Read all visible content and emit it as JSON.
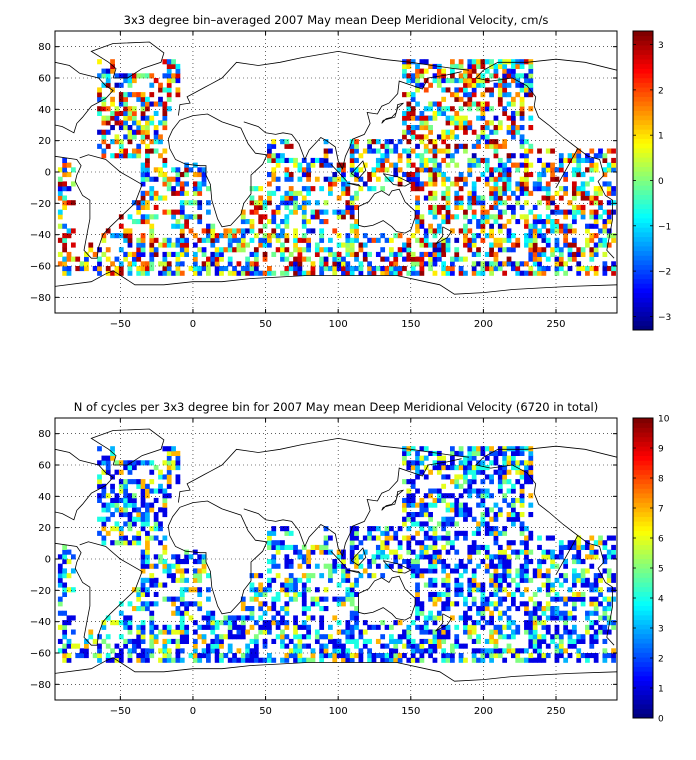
{
  "chart_data": [
    {
      "type": "heatmap",
      "title": "3x3 degree bin–averaged 2007 May mean Deep Meridional Velocity, cm/s",
      "xlabel": "",
      "ylabel": "",
      "xlim": [
        -95,
        292
      ],
      "ylim": [
        -90,
        90
      ],
      "x_ticks": [
        -50,
        0,
        50,
        100,
        150,
        200,
        250
      ],
      "y_ticks": [
        -80,
        -60,
        -40,
        -20,
        0,
        20,
        40,
        60,
        80
      ],
      "grid": "dotted",
      "bin_size_deg": 3,
      "colorbar": {
        "range": [
          -3.3,
          3.3
        ],
        "ticks": [
          -3,
          -2,
          -1,
          0,
          1,
          2,
          3
        ],
        "colormap": "jet",
        "placement": "right"
      }
    },
    {
      "type": "heatmap",
      "title": "N of cycles per 3x3 degree bin for 2007 May mean Deep Meridional Velocity (6720 in total)",
      "xlabel": "",
      "ylabel": "",
      "xlim": [
        -95,
        292
      ],
      "ylim": [
        -90,
        90
      ],
      "x_ticks": [
        -50,
        0,
        50,
        100,
        150,
        200,
        250
      ],
      "y_ticks": [
        -80,
        -60,
        -40,
        -20,
        0,
        20,
        40,
        60,
        80
      ],
      "grid": "dotted",
      "bin_size_deg": 3,
      "colorbar": {
        "range": [
          0,
          10
        ],
        "ticks": [
          0,
          1,
          2,
          3,
          4,
          5,
          6,
          7,
          8,
          9,
          10
        ],
        "colormap": "jet",
        "placement": "right"
      }
    }
  ]
}
